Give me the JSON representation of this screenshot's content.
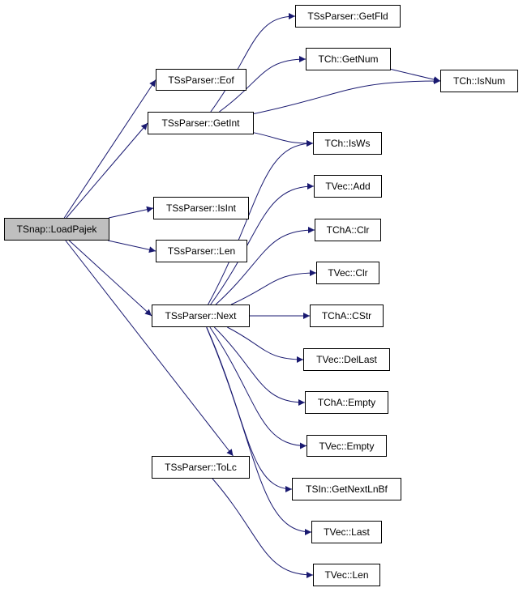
{
  "graph": {
    "edge_color": "#191970",
    "root_fill": "#bfbfbf",
    "nodes": [
      {
        "id": "loadpajek",
        "label": "TSnap::LoadPajek",
        "root": true
      },
      {
        "id": "getfld",
        "label": "TSsParser::GetFld"
      },
      {
        "id": "getnum",
        "label": "TCh::GetNum"
      },
      {
        "id": "eof",
        "label": "TSsParser::Eof"
      },
      {
        "id": "isnum",
        "label": "TCh::IsNum"
      },
      {
        "id": "getint",
        "label": "TSsParser::GetInt"
      },
      {
        "id": "isws",
        "label": "TCh::IsWs"
      },
      {
        "id": "isint",
        "label": "TSsParser::IsInt"
      },
      {
        "id": "add",
        "label": "TVec::Add"
      },
      {
        "id": "chaclr",
        "label": "TChA::Clr"
      },
      {
        "id": "len",
        "label": "TSsParser::Len"
      },
      {
        "id": "vecclr",
        "label": "TVec::Clr"
      },
      {
        "id": "next",
        "label": "TSsParser::Next"
      },
      {
        "id": "cstr",
        "label": "TChA::CStr"
      },
      {
        "id": "dellast",
        "label": "TVec::DelLast"
      },
      {
        "id": "chaempty",
        "label": "TChA::Empty"
      },
      {
        "id": "vecempty",
        "label": "TVec::Empty"
      },
      {
        "id": "tolc",
        "label": "TSsParser::ToLc"
      },
      {
        "id": "getnextlnbf",
        "label": "TSIn::GetNextLnBf"
      },
      {
        "id": "last",
        "label": "TVec::Last"
      },
      {
        "id": "veclen",
        "label": "TVec::Len"
      }
    ],
    "edges": [
      [
        "loadpajek",
        "eof"
      ],
      [
        "loadpajek",
        "getint"
      ],
      [
        "loadpajek",
        "isint"
      ],
      [
        "loadpajek",
        "len"
      ],
      [
        "loadpajek",
        "next"
      ],
      [
        "loadpajek",
        "tolc"
      ],
      [
        "getint",
        "getfld"
      ],
      [
        "getint",
        "getnum"
      ],
      [
        "getint",
        "isnum"
      ],
      [
        "getint",
        "isws"
      ],
      [
        "getnum",
        "isnum"
      ],
      [
        "next",
        "isws"
      ],
      [
        "next",
        "add"
      ],
      [
        "next",
        "chaclr"
      ],
      [
        "next",
        "vecclr"
      ],
      [
        "next",
        "cstr"
      ],
      [
        "next",
        "dellast"
      ],
      [
        "next",
        "chaempty"
      ],
      [
        "next",
        "vecempty"
      ],
      [
        "next",
        "getnextlnbf"
      ],
      [
        "next",
        "last"
      ],
      [
        "tolc",
        "veclen"
      ]
    ]
  }
}
